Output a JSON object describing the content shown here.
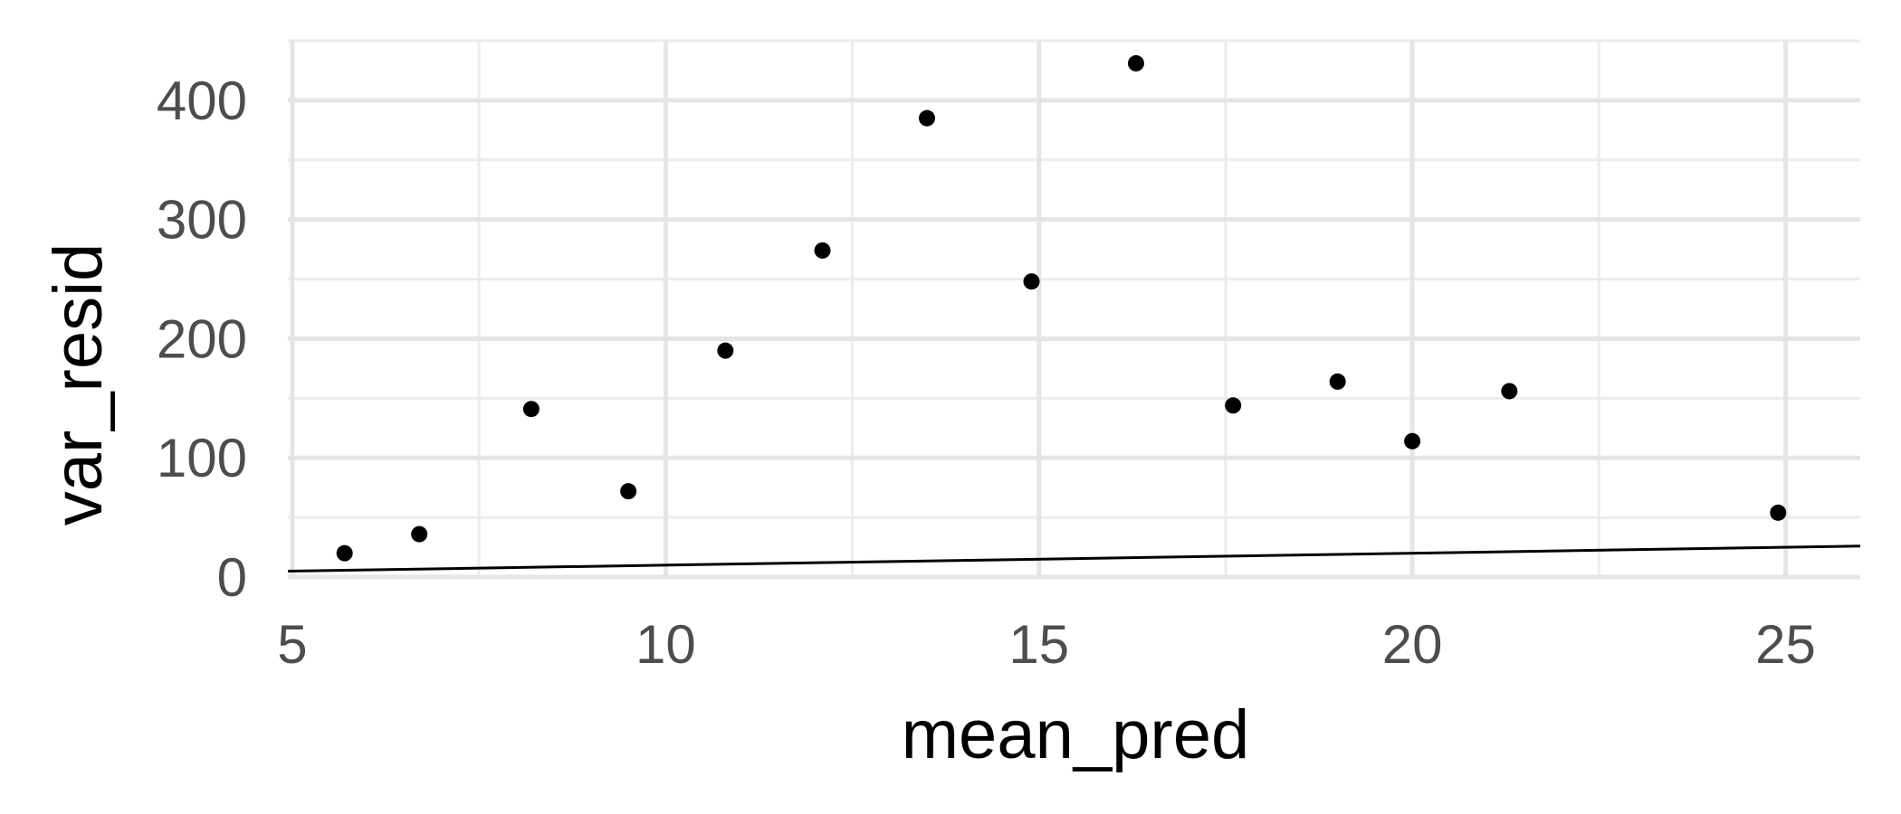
{
  "chart_data": {
    "type": "scatter",
    "title": "",
    "xlabel": "mean_pred",
    "ylabel": "var_resid",
    "xlim": [
      4.94,
      26.0
    ],
    "ylim": [
      -1.5,
      450
    ],
    "x_ticks": [
      5,
      10,
      15,
      20,
      25
    ],
    "x_tick_labels": [
      "5",
      "10",
      "15",
      "20",
      "25"
    ],
    "y_ticks": [
      0,
      100,
      200,
      300,
      400
    ],
    "y_tick_labels": [
      "0",
      "100",
      "200",
      "300",
      "400"
    ],
    "grid": true,
    "legend": "none",
    "point_color": "#000000",
    "points": [
      {
        "x": 5.7,
        "y": 20
      },
      {
        "x": 6.7,
        "y": 36
      },
      {
        "x": 8.2,
        "y": 141
      },
      {
        "x": 9.5,
        "y": 72
      },
      {
        "x": 10.8,
        "y": 190
      },
      {
        "x": 12.1,
        "y": 274
      },
      {
        "x": 13.5,
        "y": 385
      },
      {
        "x": 14.9,
        "y": 248
      },
      {
        "x": 16.3,
        "y": 431
      },
      {
        "x": 17.6,
        "y": 144
      },
      {
        "x": 19.0,
        "y": 164
      },
      {
        "x": 20.0,
        "y": 114
      },
      {
        "x": 21.3,
        "y": 156
      },
      {
        "x": 24.9,
        "y": 54
      }
    ],
    "reference_line": {
      "x": [
        4.94,
        26.0
      ],
      "y": [
        4.94,
        26.0
      ]
    }
  }
}
